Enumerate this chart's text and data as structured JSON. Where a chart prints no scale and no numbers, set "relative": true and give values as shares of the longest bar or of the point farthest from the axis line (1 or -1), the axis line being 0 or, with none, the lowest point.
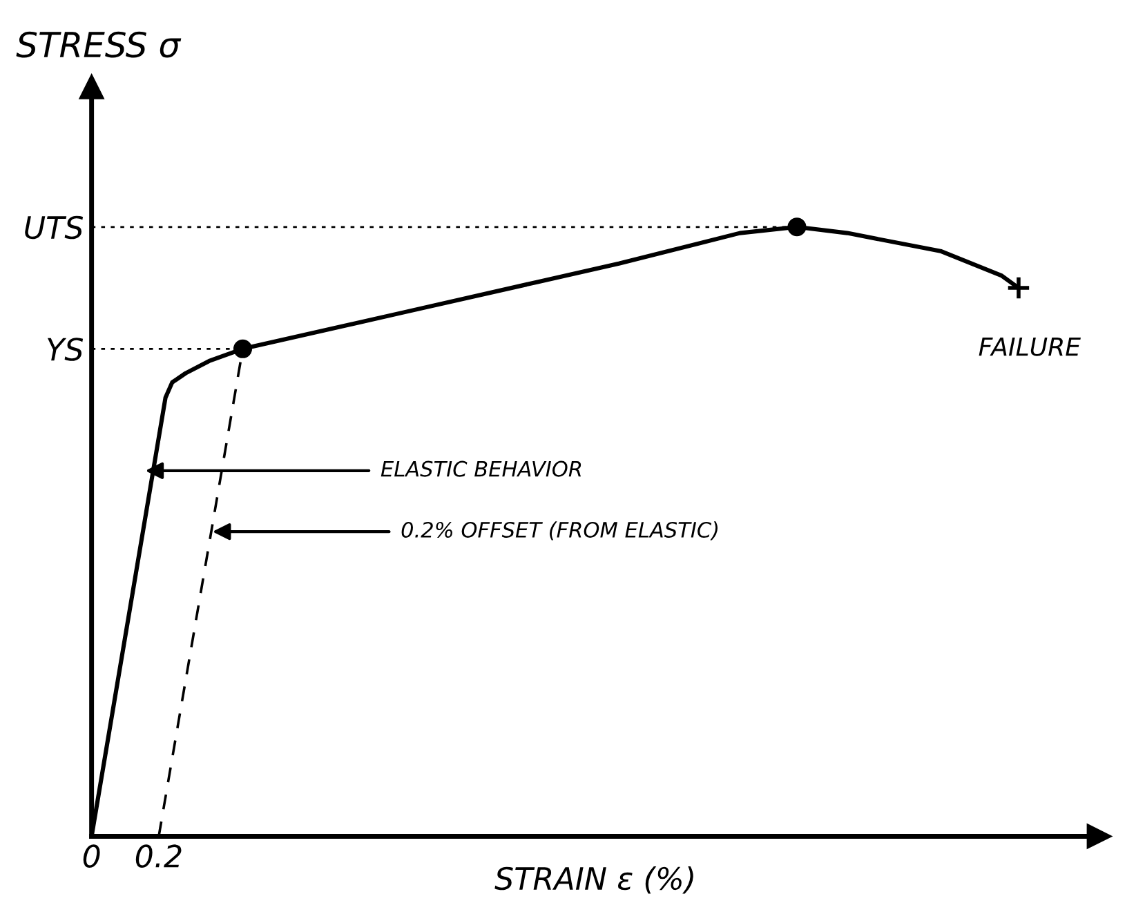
{
  "chart_data": {
    "type": "line",
    "relative": true,
    "xlabel": "STRAIN ε (%)",
    "ylabel": "STRESS σ",
    "xlim": [
      0,
      3.0
    ],
    "xticks": [
      0,
      0.2
    ],
    "series": [
      {
        "color": "#000000",
        "line_style": "solid",
        "marker": "none",
        "x": [
          0,
          0.22,
          0.24,
          0.28,
          0.35,
          0.45,
          0.93,
          1.33,
          1.57,
          1.93,
          2.1,
          2.25,
          2.53,
          2.71,
          2.76
        ],
        "values": [
          0,
          0.72,
          0.745,
          0.76,
          0.78,
          0.8,
          0.86,
          0.91,
          0.94,
          0.99,
          1.0,
          0.99,
          0.96,
          0.92,
          0.9
        ]
      },
      {
        "type": "line",
        "color": "#000000",
        "line_style": "dashed",
        "marker": "none",
        "x": [
          0.2,
          0.45
        ],
        "values": [
          0,
          0.8
        ]
      },
      {
        "type": "scatter",
        "color": "#000000",
        "marker": "circle",
        "x": [
          0.45,
          2.1
        ],
        "values": [
          0.8,
          1.0
        ]
      },
      {
        "type": "scatter",
        "color": "#000000",
        "marker": "cross",
        "x": [
          2.76
        ],
        "values": [
          0.9
        ]
      }
    ],
    "ref_lines": [
      {
        "axis": "y",
        "value": 0.8,
        "label": "YS",
        "line_style": "dotted"
      },
      {
        "axis": "y",
        "value": 1.0,
        "label": "UTS",
        "line_style": "dotted"
      }
    ],
    "annotations": [
      {
        "text": "ELASTIC BEHAVIOR",
        "x": 0.16,
        "y": 0.6
      },
      {
        "text": "0.2% OFFSET (FROM ELASTIC)",
        "x": 0.36,
        "y": 0.5
      },
      {
        "text": "FAILURE",
        "x": 2.76,
        "y": 0.9
      }
    ],
    "grid": false
  }
}
